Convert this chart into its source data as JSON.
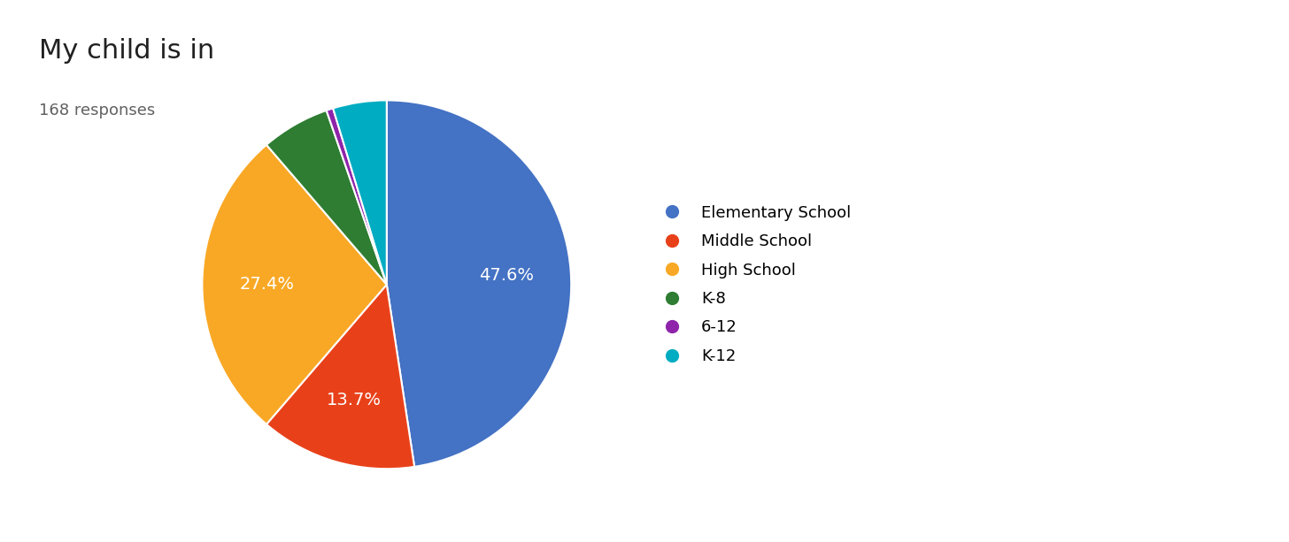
{
  "title": "My child is in",
  "subtitle": "168 responses",
  "labels": [
    "Elementary School",
    "Middle School",
    "High School",
    "K-8",
    "6-12",
    "K-12"
  ],
  "percentages": [
    47.6,
    13.7,
    27.4,
    6.0,
    0.6,
    4.7
  ],
  "colors": [
    "#4472C4",
    "#E8411A",
    "#F9A825",
    "#2E7D32",
    "#8E24AA",
    "#00ACC1"
  ],
  "pct_labels": [
    "47.6%",
    "13.7%",
    "27.4%",
    "",
    "",
    ""
  ],
  "background_color": "#ffffff",
  "title_fontsize": 22,
  "subtitle_fontsize": 13,
  "legend_fontsize": 13,
  "pct_fontsize": 14,
  "startangle": 90
}
